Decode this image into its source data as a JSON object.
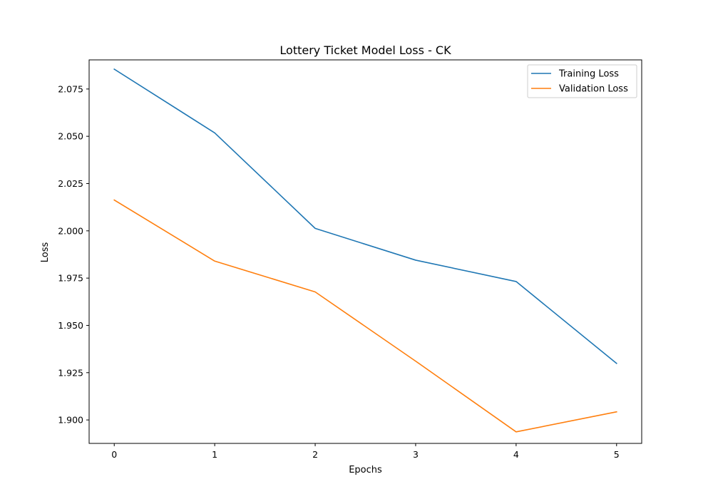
{
  "chart_data": {
    "type": "line",
    "title": "Lottery Ticket Model Loss - CK",
    "xlabel": "Epochs",
    "ylabel": "Loss",
    "x": [
      0,
      1,
      2,
      3,
      4,
      5
    ],
    "xticks": [
      "0",
      "1",
      "2",
      "3",
      "4",
      "5"
    ],
    "yticks": [
      "1.900",
      "1.925",
      "1.950",
      "1.975",
      "2.000",
      "2.025",
      "2.050",
      "2.075"
    ],
    "xlim": [
      -0.25,
      5.25
    ],
    "ylim": [
      1.8876,
      2.0904
    ],
    "grid": false,
    "legend_position": "top-right",
    "series": [
      {
        "name": "Training Loss",
        "color": "#1f77b4",
        "values": [
          2.0855,
          2.0518,
          2.0013,
          1.9845,
          1.9732,
          1.9299
        ]
      },
      {
        "name": "Validation Loss",
        "color": "#ff7f0e",
        "values": [
          2.0163,
          1.984,
          1.9677,
          1.9311,
          1.8937,
          1.9043
        ]
      }
    ]
  }
}
